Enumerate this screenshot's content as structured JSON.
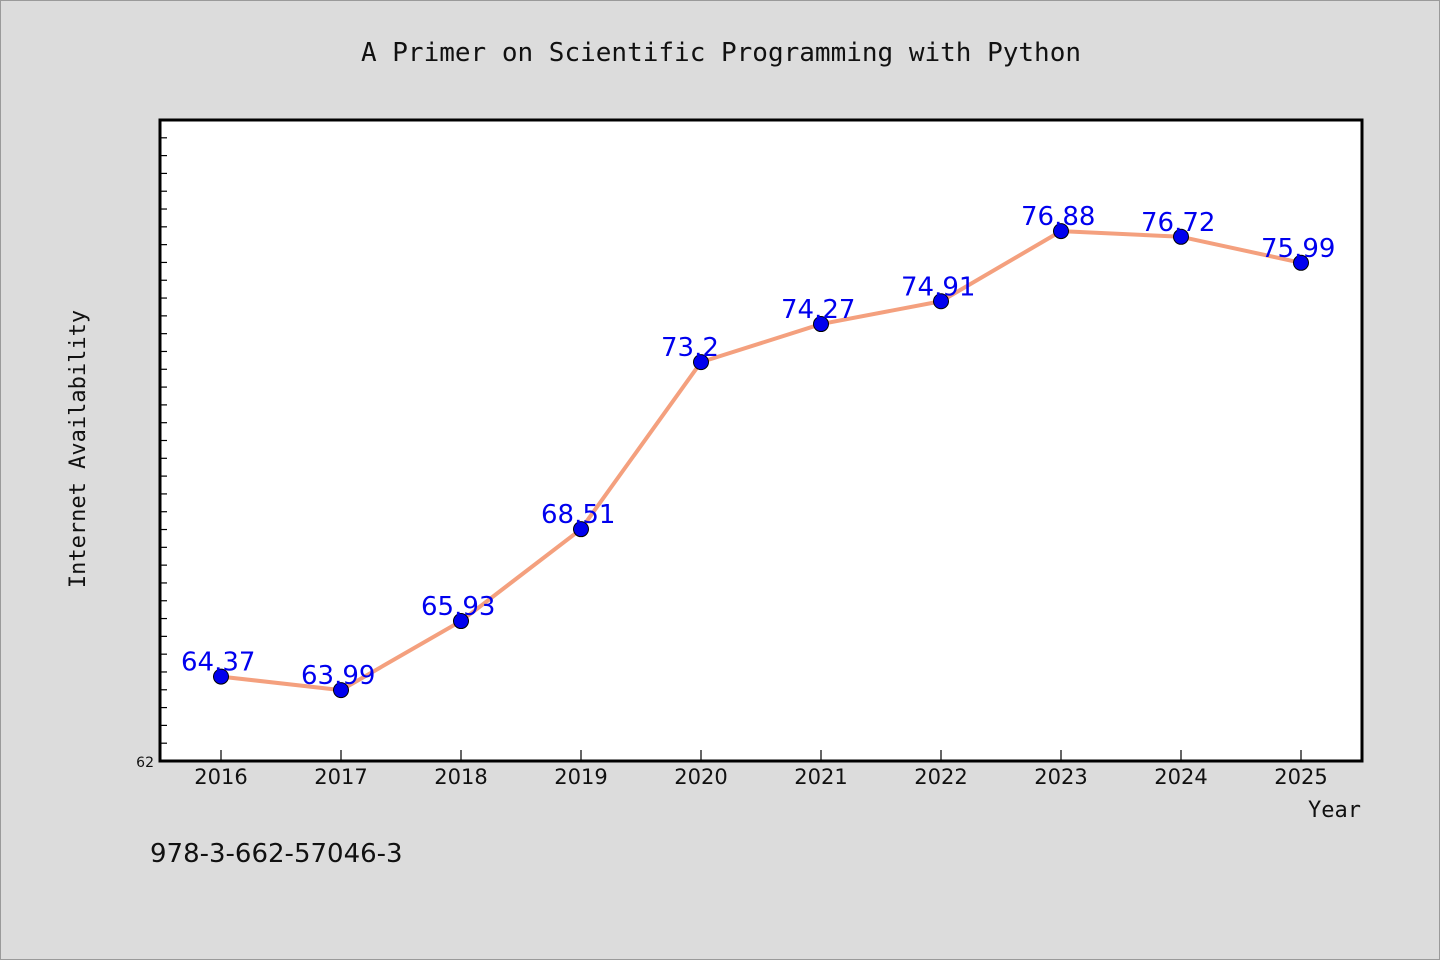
{
  "chart_data": {
    "type": "line",
    "title": "A Primer on Scientific Programming with Python",
    "xlabel": "Year",
    "ylabel": "Internet Availability",
    "categories": [
      "2016",
      "2017",
      "2018",
      "2019",
      "2020",
      "2021",
      "2022",
      "2023",
      "2024",
      "2025"
    ],
    "series": [
      {
        "values": [
          64.37,
          63.99,
          65.93,
          68.51,
          73.2,
          74.27,
          74.91,
          76.88,
          76.72,
          75.99
        ],
        "data_labels": [
          "64.37",
          "63.99",
          "65.93",
          "68.51",
          "73.2",
          "74.27",
          "74.91",
          "76.88",
          "76.72",
          "75.99"
        ]
      }
    ],
    "yticks": [
      "62"
    ],
    "ylim": [
      62,
      80
    ],
    "grid": false,
    "legend": "none",
    "colors": {
      "line": "#f4a07e",
      "marker": "#0000ee",
      "label": "#0000ee",
      "background": "#dcdcdc",
      "plot_background": "#ffffff"
    }
  },
  "footer": {
    "isbn": "978-3-662-57046-3"
  }
}
